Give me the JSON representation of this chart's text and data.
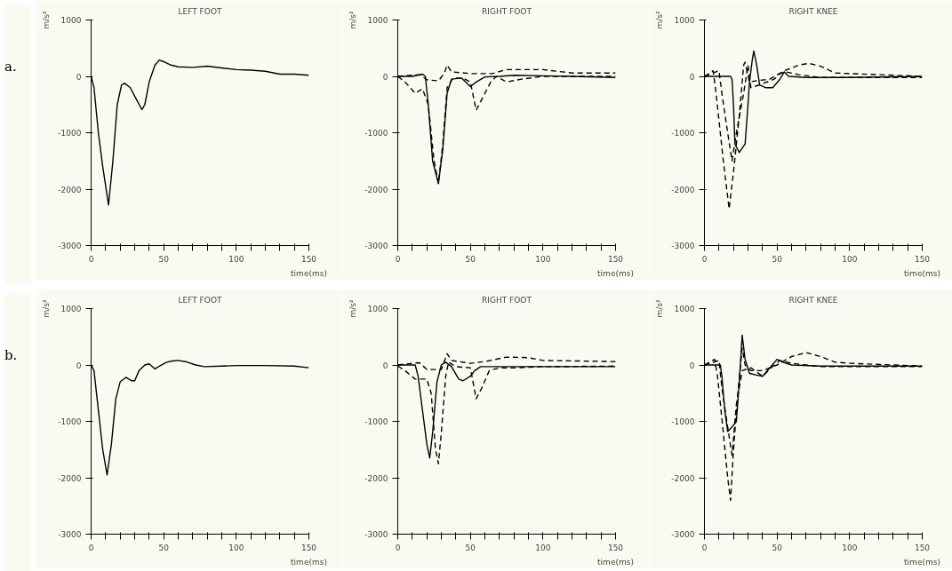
{
  "chart_data": [
    {
      "type": "line",
      "title": "LEFT FOOT",
      "xlabel": "time(ms)",
      "ylabel": "m/s²",
      "annotations": [
        "a."
      ],
      "xlim": [
        0,
        150
      ],
      "ylim": [
        -3000,
        1000
      ],
      "yticks": [
        -3000,
        -2000,
        -1000,
        0,
        1000
      ],
      "xticks": [
        0,
        {
          "value": 10,
          "label": null
        },
        {
          "value": 20,
          "label": null
        },
        {
          "value": 30,
          "label": null
        },
        {
          "value": 40,
          "label": null
        },
        50,
        {
          "value": 60,
          "label": null
        },
        {
          "value": 70,
          "label": null
        },
        {
          "value": 80,
          "label": null
        },
        {
          "value": 90,
          "label": null
        },
        100,
        {
          "value": 110,
          "label": null
        },
        {
          "value": 120,
          "label": null
        },
        {
          "value": 130,
          "label": null
        },
        {
          "value": 140,
          "label": null
        },
        150
      ],
      "series": [
        {
          "color": "#000000",
          "line_style": "solid",
          "x": [
            0,
            2,
            5,
            8,
            12,
            15,
            18,
            21,
            23,
            27,
            31,
            35,
            37,
            40,
            44,
            47,
            50,
            55,
            60,
            70,
            80,
            90,
            100,
            110,
            120,
            130,
            140,
            150
          ],
          "values": [
            0,
            -200,
            -1000,
            -1600,
            -2280,
            -1500,
            -500,
            -150,
            -120,
            -200,
            -400,
            -590,
            -500,
            -100,
            200,
            290,
            260,
            200,
            170,
            160,
            180,
            150,
            120,
            110,
            90,
            40,
            40,
            20
          ]
        }
      ]
    },
    {
      "type": "line",
      "title": "RIGHT FOOT",
      "xlabel": "time(ms)",
      "ylabel": "m/s²",
      "xlim": [
        0,
        150
      ],
      "ylim": [
        -3000,
        1000
      ],
      "yticks": [
        -3000,
        -2000,
        -1000,
        0,
        1000
      ],
      "xticks": [
        0,
        {
          "value": 10,
          "label": null
        },
        {
          "value": 20,
          "label": null
        },
        {
          "value": 30,
          "label": null
        },
        {
          "value": 40,
          "label": null
        },
        50,
        {
          "value": 60,
          "label": null
        },
        {
          "value": 70,
          "label": null
        },
        {
          "value": 80,
          "label": null
        },
        {
          "value": 90,
          "label": null
        },
        100,
        {
          "value": 110,
          "label": null
        },
        {
          "value": 120,
          "label": null
        },
        {
          "value": 130,
          "label": null
        },
        {
          "value": 140,
          "label": null
        },
        150
      ],
      "series": [
        {
          "color": "#000000",
          "line_style": "solid",
          "x": [
            0,
            10,
            17,
            19,
            21,
            24,
            28,
            31,
            34,
            37,
            44,
            50,
            54,
            60,
            70,
            80,
            100,
            120,
            150
          ],
          "values": [
            0,
            0,
            40,
            0,
            -500,
            -1500,
            -1900,
            -1300,
            -300,
            -50,
            -30,
            -180,
            -100,
            -10,
            0,
            20,
            10,
            0,
            -20
          ]
        },
        {
          "color": "#000000",
          "line_style": "dashed",
          "x": [
            0,
            5,
            12,
            17,
            21,
            25,
            28,
            31,
            34,
            38,
            45,
            50,
            54,
            58,
            64,
            68,
            75,
            85,
            100,
            150
          ],
          "values": [
            0,
            -100,
            -300,
            -220,
            -500,
            -1500,
            -1900,
            -1200,
            -200,
            -30,
            -30,
            -100,
            -600,
            -400,
            -100,
            0,
            -100,
            -50,
            0,
            0
          ]
        },
        {
          "color": "#000000",
          "line_style": "dashed",
          "x": [
            0,
            15,
            20,
            28,
            32,
            34,
            37,
            50,
            65,
            75,
            100,
            120,
            150
          ],
          "values": [
            0,
            30,
            -60,
            -80,
            50,
            200,
            80,
            50,
            50,
            120,
            120,
            60,
            60
          ]
        }
      ]
    },
    {
      "type": "line",
      "title": "RIGHT KNEE",
      "xlabel": "time(ms)",
      "ylabel": "m/s²",
      "xlim": [
        0,
        150
      ],
      "ylim": [
        -3000,
        1000
      ],
      "yticks": [
        -3000,
        -2000,
        -1000,
        0,
        1000
      ],
      "xticks": [
        0,
        {
          "value": 10,
          "label": null
        },
        {
          "value": 20,
          "label": null
        },
        {
          "value": 30,
          "label": null
        },
        {
          "value": 40,
          "label": null
        },
        50,
        {
          "value": 60,
          "label": null
        },
        {
          "value": 70,
          "label": null
        },
        {
          "value": 80,
          "label": null
        },
        {
          "value": 90,
          "label": null
        },
        100,
        {
          "value": 110,
          "label": null
        },
        {
          "value": 120,
          "label": null
        },
        {
          "value": 130,
          "label": null
        },
        {
          "value": 140,
          "label": null
        },
        150
      ],
      "series": [
        {
          "color": "#000000",
          "line_style": "solid",
          "x": [
            0,
            18,
            19,
            20,
            21,
            24,
            28,
            30,
            31,
            33,
            34,
            36,
            38,
            42,
            47,
            52,
            55,
            58,
            70,
            100,
            150
          ],
          "values": [
            0,
            0,
            -50,
            -500,
            -1200,
            -1350,
            -1200,
            -500,
            -100,
            300,
            450,
            200,
            -150,
            -200,
            -200,
            -50,
            80,
            0,
            -20,
            -20,
            0
          ]
        },
        {
          "color": "#000000",
          "line_style": "dashed",
          "x": [
            0,
            6,
            8,
            13,
            17,
            20,
            24,
            27,
            28,
            31,
            35,
            45,
            55,
            65,
            72,
            80,
            90,
            100,
            150
          ],
          "values": [
            0,
            100,
            -300,
            -1500,
            -2350,
            -1700,
            -700,
            200,
            250,
            -100,
            -80,
            -50,
            100,
            200,
            230,
            180,
            60,
            50,
            0
          ]
        },
        {
          "color": "#000000",
          "line_style": "dashed",
          "x": [
            0,
            10,
            12,
            16,
            19,
            22,
            27,
            30,
            32,
            38,
            48,
            52,
            56,
            65,
            80,
            150
          ],
          "values": [
            0,
            100,
            -300,
            -1000,
            -1500,
            -1000,
            -300,
            200,
            -200,
            -150,
            -50,
            50,
            80,
            30,
            -20,
            -20
          ]
        }
      ]
    },
    {
      "type": "line",
      "title": "LEFT FOOT",
      "xlabel": "time(ms)",
      "ylabel": "m/s²",
      "annotations": [
        "b."
      ],
      "xlim": [
        0,
        150
      ],
      "ylim": [
        -3000,
        1000
      ],
      "yticks": [
        -3000,
        -2000,
        -1000,
        0,
        1000
      ],
      "xticks": [
        0,
        {
          "value": 10,
          "label": null
        },
        {
          "value": 20,
          "label": null
        },
        {
          "value": 30,
          "label": null
        },
        {
          "value": 40,
          "label": null
        },
        50,
        {
          "value": 60,
          "label": null
        },
        {
          "value": 70,
          "label": null
        },
        {
          "value": 80,
          "label": null
        },
        {
          "value": 90,
          "label": null
        },
        100,
        {
          "value": 110,
          "label": null
        },
        {
          "value": 120,
          "label": null
        },
        {
          "value": 130,
          "label": null
        },
        {
          "value": 140,
          "label": null
        },
        150
      ],
      "series": [
        {
          "color": "#000000",
          "line_style": "solid",
          "x": [
            0,
            2,
            5,
            8,
            11,
            14,
            17,
            20,
            24,
            28,
            30,
            33,
            37,
            40,
            44,
            47,
            52,
            56,
            60,
            65,
            72,
            78,
            90,
            100,
            120,
            140,
            150
          ],
          "values": [
            0,
            -100,
            -800,
            -1500,
            -1950,
            -1400,
            -600,
            -300,
            -220,
            -280,
            -280,
            -100,
            0,
            20,
            -70,
            -20,
            50,
            70,
            80,
            60,
            0,
            -30,
            -20,
            -10,
            -10,
            -20,
            -50
          ]
        }
      ]
    },
    {
      "type": "line",
      "title": "RIGHT FOOT",
      "xlabel": "time(ms)",
      "ylabel": "m/s²",
      "xlim": [
        0,
        150
      ],
      "ylim": [
        -3000,
        1000
      ],
      "yticks": [
        -3000,
        -2000,
        -1000,
        0,
        1000
      ],
      "xticks": [
        0,
        {
          "value": 10,
          "label": null
        },
        {
          "value": 20,
          "label": null
        },
        {
          "value": 30,
          "label": null
        },
        {
          "value": 40,
          "label": null
        },
        50,
        {
          "value": 60,
          "label": null
        },
        {
          "value": 70,
          "label": null
        },
        {
          "value": 80,
          "label": null
        },
        {
          "value": 90,
          "label": null
        },
        100,
        {
          "value": 110,
          "label": null
        },
        {
          "value": 120,
          "label": null
        },
        {
          "value": 130,
          "label": null
        },
        {
          "value": 140,
          "label": null
        },
        150
      ],
      "series": [
        {
          "color": "#000000",
          "line_style": "solid",
          "x": [
            0,
            12,
            14,
            17,
            20,
            22,
            24,
            27,
            30,
            33,
            37,
            42,
            45,
            50,
            53,
            57,
            100,
            150
          ],
          "values": [
            0,
            0,
            -200,
            -800,
            -1400,
            -1650,
            -1200,
            -300,
            0,
            50,
            -30,
            -250,
            -280,
            -200,
            -100,
            -30,
            -30,
            -30
          ]
        },
        {
          "color": "#000000",
          "line_style": "dashed",
          "x": [
            0,
            5,
            12,
            20,
            23,
            26,
            28,
            30,
            33,
            35,
            40,
            50,
            54,
            58,
            63,
            70,
            80,
            100,
            150
          ],
          "values": [
            -20,
            -100,
            -250,
            -250,
            -500,
            -1500,
            -1750,
            -1200,
            -200,
            50,
            -30,
            -50,
            -600,
            -400,
            -100,
            -50,
            -50,
            -30,
            -20
          ]
        },
        {
          "color": "#000000",
          "line_style": "dashed",
          "x": [
            0,
            10,
            15,
            20,
            30,
            34,
            37,
            50,
            60,
            75,
            90,
            100,
            150
          ],
          "values": [
            0,
            30,
            40,
            -80,
            -80,
            200,
            80,
            30,
            60,
            140,
            130,
            80,
            60
          ]
        }
      ]
    },
    {
      "type": "line",
      "title": "RIGHT KNEE",
      "xlabel": "time(ms)",
      "ylabel": "m/s²",
      "xlim": [
        0,
        150
      ],
      "ylim": [
        -3000,
        1000
      ],
      "yticks": [
        -3000,
        -2000,
        -1000,
        0,
        1000
      ],
      "xticks": [
        0,
        {
          "value": 10,
          "label": null
        },
        {
          "value": 20,
          "label": null
        },
        {
          "value": 30,
          "label": null
        },
        {
          "value": 40,
          "label": null
        },
        50,
        {
          "value": 60,
          "label": null
        },
        {
          "value": 70,
          "label": null
        },
        {
          "value": 80,
          "label": null
        },
        {
          "value": 90,
          "label": null
        },
        100,
        {
          "value": 110,
          "label": null
        },
        {
          "value": 120,
          "label": null
        },
        {
          "value": 130,
          "label": null
        },
        {
          "value": 140,
          "label": null
        },
        150
      ],
      "series": [
        {
          "color": "#000000",
          "line_style": "solid",
          "x": [
            0,
            11,
            12,
            14,
            16,
            19,
            22,
            24,
            26,
            28,
            31,
            36,
            40,
            45,
            50,
            54,
            60,
            80,
            150
          ],
          "values": [
            0,
            0,
            -200,
            -800,
            -1180,
            -1100,
            -1000,
            -300,
            530,
            100,
            -150,
            -180,
            -200,
            -50,
            100,
            50,
            0,
            -20,
            -20
          ]
        },
        {
          "color": "#000000",
          "line_style": "dashed",
          "x": [
            0,
            7,
            9,
            13,
            16,
            18,
            20,
            23,
            26,
            28,
            32,
            40,
            50,
            60,
            70,
            80,
            90,
            100,
            150
          ],
          "values": [
            0,
            100,
            -200,
            -1200,
            -2000,
            -2400,
            -1500,
            -500,
            300,
            0,
            -100,
            -100,
            0,
            150,
            220,
            150,
            50,
            30,
            -20
          ]
        },
        {
          "color": "#000000",
          "line_style": "dashed",
          "x": [
            0,
            10,
            12,
            16,
            19,
            22,
            26,
            32,
            40,
            48,
            52,
            60,
            80,
            150
          ],
          "values": [
            0,
            80,
            -400,
            -1100,
            -1600,
            -700,
            -100,
            -50,
            -200,
            0,
            80,
            30,
            -30,
            -30
          ]
        }
      ]
    }
  ]
}
